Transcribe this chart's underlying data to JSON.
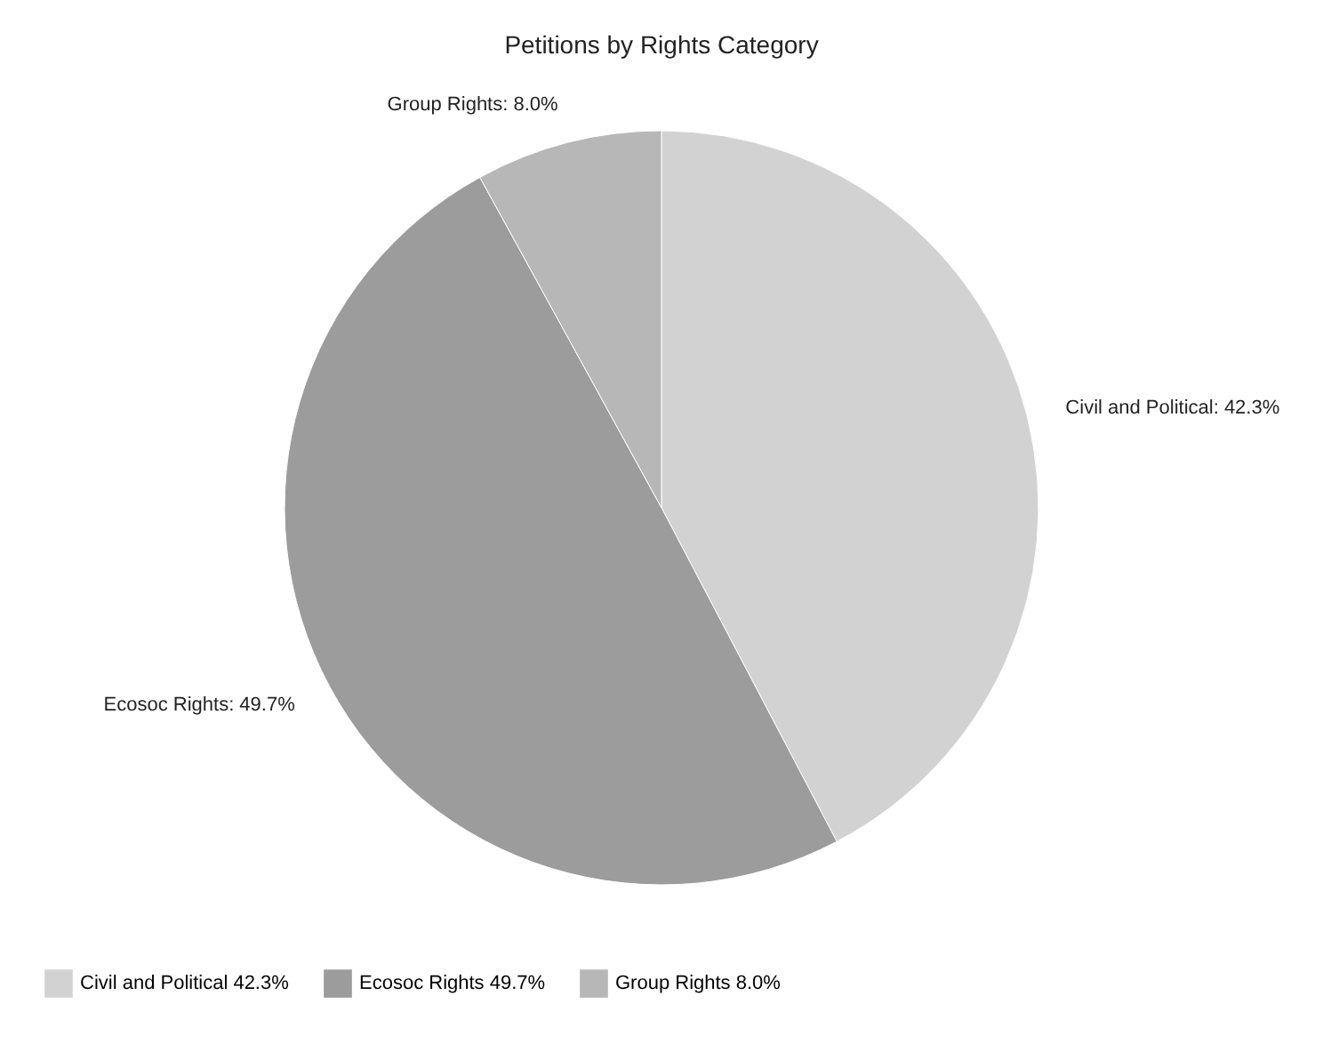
{
  "chart_data": {
    "type": "pie",
    "title": "Petitions by Rights Category",
    "categories": [
      "Civil and Political",
      "Ecosoc Rights",
      "Group Rights"
    ],
    "values": [
      42.3,
      49.7,
      8.0
    ],
    "value_labels": [
      "42.3%",
      "49.7%",
      "8.0%"
    ],
    "colors": [
      "#d2d2d2",
      "#9c9c9c",
      "#b7b7b7"
    ],
    "data_labels": true,
    "legend": "bottom"
  }
}
